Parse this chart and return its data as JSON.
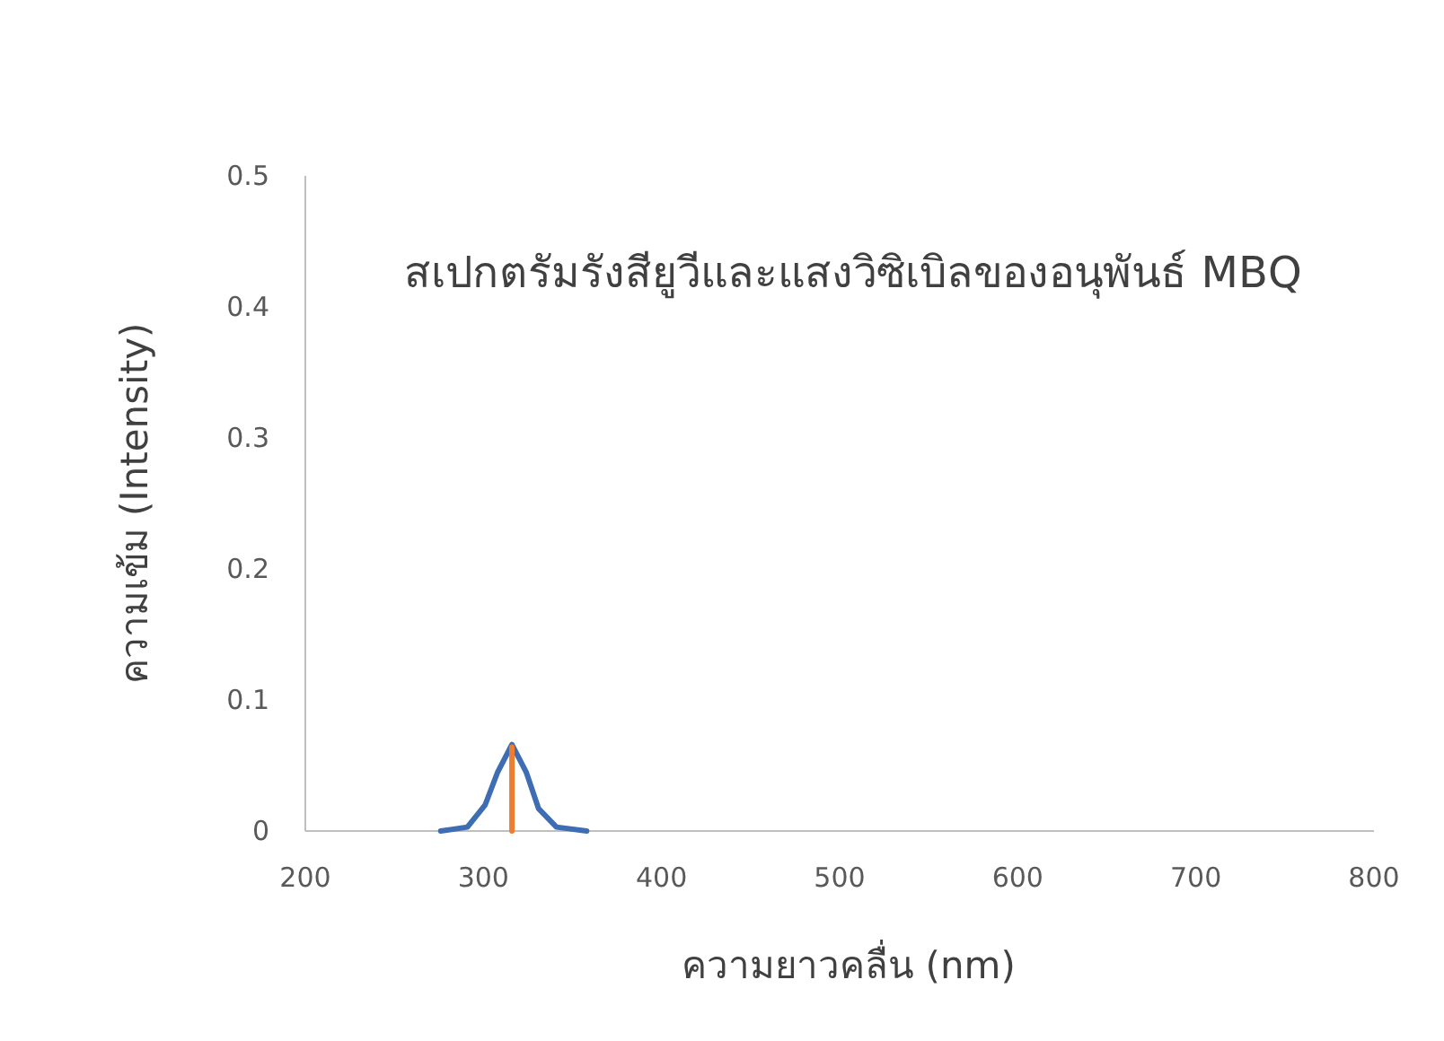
{
  "chart_data": {
    "type": "line",
    "title": "สเปกตรัมรังสียูวีและแสงวิซิเบิลของอนุพันธ์ MBQ",
    "xlabel": "ความยาวคลื่น (nm)",
    "ylabel": "ความเข้ม (Intensity)",
    "xlim": [
      200,
      800
    ],
    "xticks": [
      200,
      300,
      400,
      500,
      600,
      700,
      800
    ],
    "ylim": [
      0,
      0.5
    ],
    "yticks": [
      0,
      0.1,
      0.2,
      0.3,
      0.4,
      0.5
    ],
    "series": [
      {
        "color": "#3f6db4",
        "x": [
          276,
          291,
          301,
          308,
          316,
          324,
          331,
          341,
          358
        ],
        "values": [
          0,
          0.003,
          0.02,
          0.045,
          0.066,
          0.045,
          0.017,
          0.003,
          0
        ]
      },
      {
        "color": "#ed7d31",
        "x": [
          316,
          316
        ],
        "values": [
          0,
          0.064
        ]
      }
    ]
  }
}
